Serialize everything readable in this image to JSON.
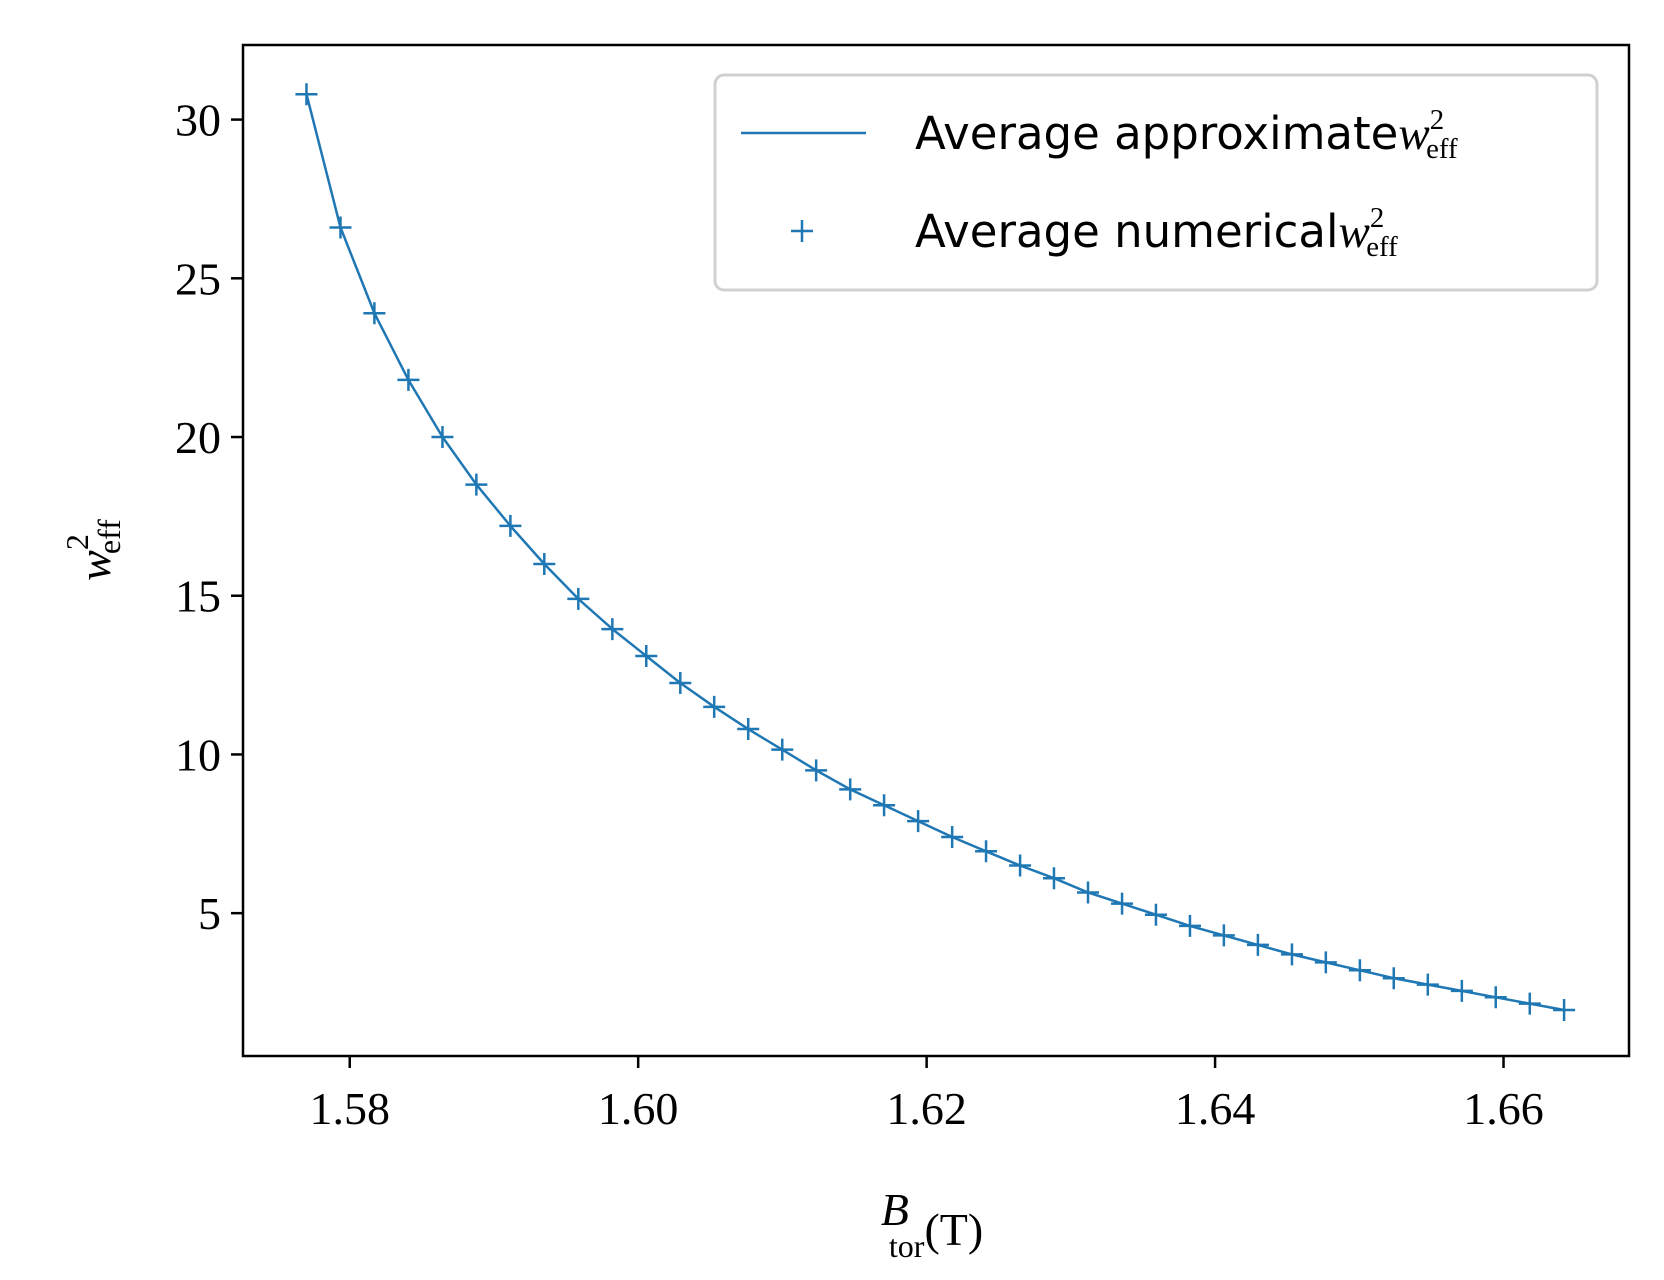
{
  "chart_data": {
    "type": "line",
    "x_label": {
      "base": "B",
      "sub": "tor",
      "unit": "(T)"
    },
    "y_label": {
      "base": "w",
      "sup": "2",
      "sub": "eff"
    },
    "x": [
      1.577,
      1.57936,
      1.58171,
      1.58407,
      1.58643,
      1.58878,
      1.59114,
      1.59349,
      1.59585,
      1.59821,
      1.60056,
      1.60292,
      1.60527,
      1.60763,
      1.60999,
      1.61234,
      1.6147,
      1.61705,
      1.61941,
      1.62177,
      1.62412,
      1.62648,
      1.62883,
      1.63119,
      1.63355,
      1.6359,
      1.63826,
      1.64061,
      1.64297,
      1.64533,
      1.64768,
      1.65004,
      1.65239,
      1.65475,
      1.65711,
      1.65946,
      1.66182,
      1.6642
    ],
    "series": [
      {
        "name": "Average approximate",
        "style": "line",
        "color": "#1f77b4",
        "values": [
          30.8,
          26.6,
          23.9,
          21.8,
          20.0,
          18.5,
          17.2,
          16.0,
          14.9,
          13.95,
          13.1,
          12.25,
          11.5,
          10.8,
          10.15,
          9.5,
          8.9,
          8.4,
          7.9,
          7.4,
          6.95,
          6.5,
          6.1,
          5.65,
          5.3,
          4.95,
          4.6,
          4.3,
          4.0,
          3.7,
          3.45,
          3.2,
          2.95,
          2.75,
          2.55,
          2.35,
          2.15,
          1.95
        ]
      },
      {
        "name": "Average numerical",
        "style": "plus",
        "color": "#1f77b4",
        "values": [
          30.8,
          26.6,
          23.9,
          21.8,
          20.0,
          18.5,
          17.2,
          16.0,
          14.9,
          13.95,
          13.1,
          12.25,
          11.5,
          10.8,
          10.15,
          9.5,
          8.9,
          8.4,
          7.9,
          7.4,
          6.95,
          6.5,
          6.1,
          5.65,
          5.3,
          4.95,
          4.6,
          4.3,
          4.0,
          3.7,
          3.45,
          3.2,
          2.95,
          2.75,
          2.55,
          2.35,
          2.15,
          1.95
        ]
      }
    ],
    "xlim": [
      1.5726,
      1.6687
    ],
    "ylim": [
      0.5,
      32.35
    ],
    "xticks": [
      {
        "value": 1.58,
        "label": "1.58"
      },
      {
        "value": 1.6,
        "label": "1.60"
      },
      {
        "value": 1.62,
        "label": "1.62"
      },
      {
        "value": 1.64,
        "label": "1.64"
      },
      {
        "value": 1.66,
        "label": "1.66"
      }
    ],
    "yticks": [
      5,
      10,
      15,
      20,
      25,
      30
    ],
    "grid": false,
    "legend": "upper right"
  }
}
